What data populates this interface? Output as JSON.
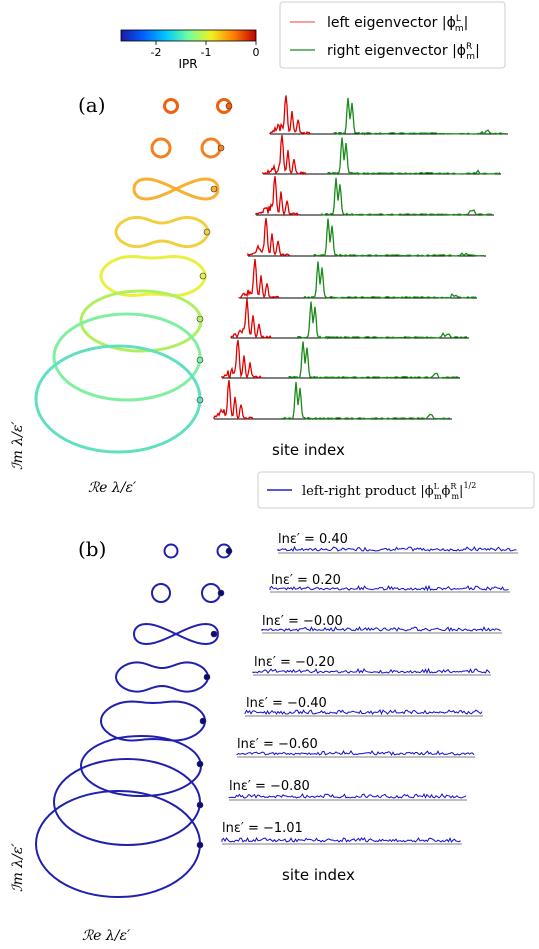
{
  "colorbar": {
    "label": "IPR",
    "ticks": [
      "-2",
      "-1",
      "0"
    ],
    "tick_values": [
      -2,
      -1,
      0
    ],
    "range": [
      -2.7,
      0
    ],
    "colors": [
      "#1a1aa6",
      "#0060ff",
      "#00c8ff",
      "#70ffa0",
      "#f0f020",
      "#ff8000",
      "#c00000"
    ]
  },
  "panel_a": {
    "label": "(a)",
    "legend": [
      {
        "text": "left eigenvector |ϕ",
        "sup": "L",
        "sub": "m",
        "tail": "|",
        "color": "#f08080"
      },
      {
        "text": "right eigenvector |ϕ",
        "sup": "R",
        "sub": "m",
        "tail": "|",
        "color": "#40a040"
      }
    ],
    "ylabel": "ℐm λ/ε′",
    "xlabel": "ℛe λ/ε′",
    "site_label": "site index",
    "loop_colors": [
      "#f06010",
      "#f48020",
      "#f8b030",
      "#f0d040",
      "#e8f040",
      "#b0f060",
      "#80f0a0",
      "#60e0c0"
    ],
    "left_color": "#e00000",
    "right_color": "#1a8a1a"
  },
  "panel_b": {
    "label": "(b)",
    "legend": {
      "text": "left-right product |ϕ",
      "sup1": "L",
      "sub1": "m",
      "mid": "ϕ",
      "sup2": "R",
      "sub2": "m",
      "tail": "|",
      "exp": "1/2",
      "color": "#4040d0"
    },
    "ylabel": "ℐm λ/ε′",
    "xlabel": "ℛe λ/ε′",
    "site_label": "site index",
    "loop_color": "#2020b0",
    "trace_color": "#1010d0",
    "epsilon_labels": [
      "lnε′ = 0.40",
      "lnε′ = 0.20",
      "lnε′ = −0.00",
      "lnε′ = −0.20",
      "lnε′ = −0.40",
      "lnε′ = −0.60",
      "lnε′ = −0.80",
      "lnε′ = −1.01"
    ],
    "ln_epsilon": [
      0.4,
      0.2,
      -0.0,
      -0.2,
      -0.4,
      -0.6,
      -0.8,
      -1.01
    ]
  }
}
